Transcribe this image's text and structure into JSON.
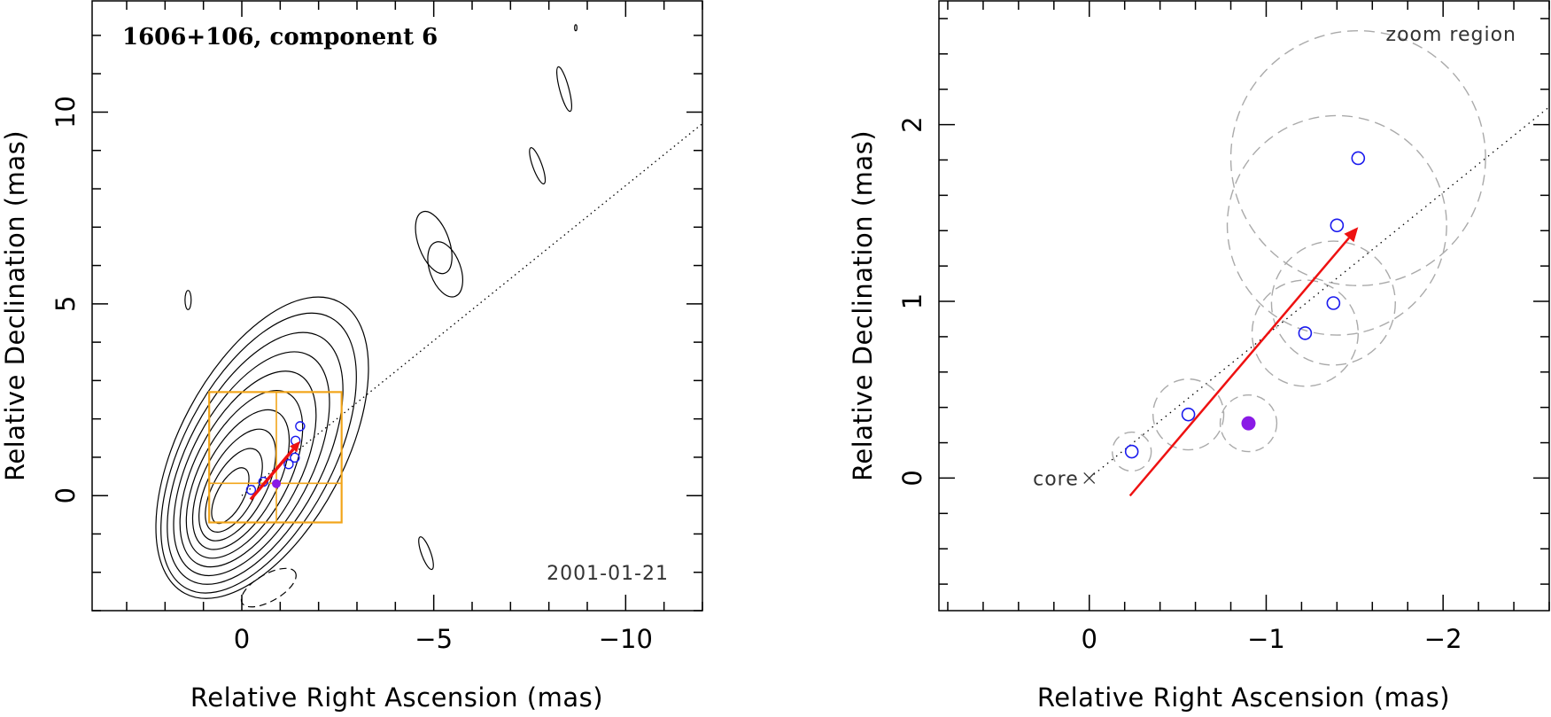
{
  "colors": {
    "contour": "#000000",
    "box": "#f2a51a",
    "arrow": "#ee1111",
    "circle": "#1a1aee",
    "filled_point": "#8a1ae6",
    "zoom_circle": "#aaaaaa"
  },
  "chart_data": [
    {
      "type": "contour",
      "title": "1606+106, component 6",
      "epoch_label": "2001-01-21",
      "xlabel": "Relative Right Ascension (mas)",
      "ylabel": "Relative Declination (mas)",
      "xlim": [
        3.9,
        -12.0
      ],
      "ylim": [
        -3.0,
        12.9
      ],
      "xticks": [
        0,
        -5,
        -10
      ],
      "xtick_labels": [
        "0",
        "−5",
        "−10"
      ],
      "yticks": [
        0,
        5,
        10
      ],
      "ytick_labels": [
        "0",
        "5",
        "10"
      ],
      "jet_axis": {
        "from": [
          0,
          0
        ],
        "to": [
          -12.0,
          9.7
        ],
        "style": "dotted"
      },
      "zoom_box": {
        "x": [
          0.85,
          -2.6
        ],
        "y": [
          -0.7,
          2.7
        ]
      },
      "zoom_box_dividers": {
        "x": -0.9,
        "y": 0.32
      },
      "components": [
        {
          "x": -0.24,
          "y": 0.15
        },
        {
          "x": -0.56,
          "y": 0.36
        },
        {
          "x": -1.22,
          "y": 0.82
        },
        {
          "x": -1.38,
          "y": 0.99
        },
        {
          "x": -1.4,
          "y": 1.43
        },
        {
          "x": -1.52,
          "y": 1.81
        }
      ],
      "current_component": {
        "x": -0.9,
        "y": 0.31
      },
      "velocity_arrow": {
        "from": [
          -0.23,
          -0.1
        ],
        "to": [
          -1.52,
          1.42
        ]
      },
      "contours": {
        "center": [
          0.3,
          0.0
        ],
        "levels": [
          {
            "a": 0.35,
            "b": 0.8
          },
          {
            "a": 0.55,
            "b": 1.2
          },
          {
            "a": 0.75,
            "b": 1.6
          },
          {
            "a": 0.95,
            "b": 2.0
          },
          {
            "a": 1.15,
            "b": 2.4
          },
          {
            "a": 1.35,
            "b": 2.8
          },
          {
            "a": 1.55,
            "b": 3.2
          },
          {
            "a": 1.75,
            "b": 3.6
          },
          {
            "a": 1.95,
            "b": 4.0
          },
          {
            "a": 2.15,
            "b": 4.3
          }
        ],
        "islands": [
          {
            "x": -5.0,
            "y": 6.6,
            "a": 0.4,
            "b": 0.85,
            "tilt": -20
          },
          {
            "x": -5.3,
            "y": 5.9,
            "a": 0.4,
            "b": 0.75,
            "tilt": -20
          },
          {
            "x": -7.7,
            "y": 8.6,
            "a": 0.12,
            "b": 0.5,
            "tilt": -20
          },
          {
            "x": -8.4,
            "y": 10.6,
            "a": 0.12,
            "b": 0.6,
            "tilt": -15
          },
          {
            "x": -4.8,
            "y": -1.5,
            "a": 0.12,
            "b": 0.45,
            "tilt": -20
          },
          {
            "x": 1.4,
            "y": 5.1,
            "a": 0.08,
            "b": 0.25,
            "tilt": 0
          },
          {
            "x": -8.7,
            "y": 12.2,
            "a": 0.03,
            "b": 0.08,
            "tilt": 0
          }
        ]
      }
    },
    {
      "type": "scatter",
      "annotation": "zoom region",
      "core_label": "core",
      "xlabel": "Relative Right Ascension (mas)",
      "ylabel": "Relative Declination (mas)",
      "xlim": [
        0.85,
        -2.6
      ],
      "ylim": [
        -0.75,
        2.7
      ],
      "xticks": [
        0,
        -1,
        -2
      ],
      "xtick_labels": [
        "0",
        "−1",
        "−2"
      ],
      "yticks": [
        0,
        1,
        2
      ],
      "ytick_labels": [
        "0",
        "1",
        "2"
      ],
      "core": {
        "x": 0.0,
        "y": 0.0
      },
      "jet_axis": {
        "from": [
          0.0,
          0.0
        ],
        "to": [
          -2.6,
          2.1
        ],
        "style": "dotted"
      },
      "components": [
        {
          "x": -0.24,
          "y": 0.15,
          "r": 0.11
        },
        {
          "x": -0.56,
          "y": 0.36,
          "r": 0.2
        },
        {
          "x": -1.22,
          "y": 0.82,
          "r": 0.3
        },
        {
          "x": -1.38,
          "y": 0.99,
          "r": 0.35
        },
        {
          "x": -1.4,
          "y": 1.43,
          "r": 0.62
        },
        {
          "x": -1.52,
          "y": 1.81,
          "r": 0.72
        }
      ],
      "current_component": {
        "x": -0.9,
        "y": 0.31,
        "r": 0.16
      },
      "velocity_arrow": {
        "from": [
          -0.23,
          -0.1
        ],
        "to": [
          -1.52,
          1.42
        ]
      }
    }
  ]
}
